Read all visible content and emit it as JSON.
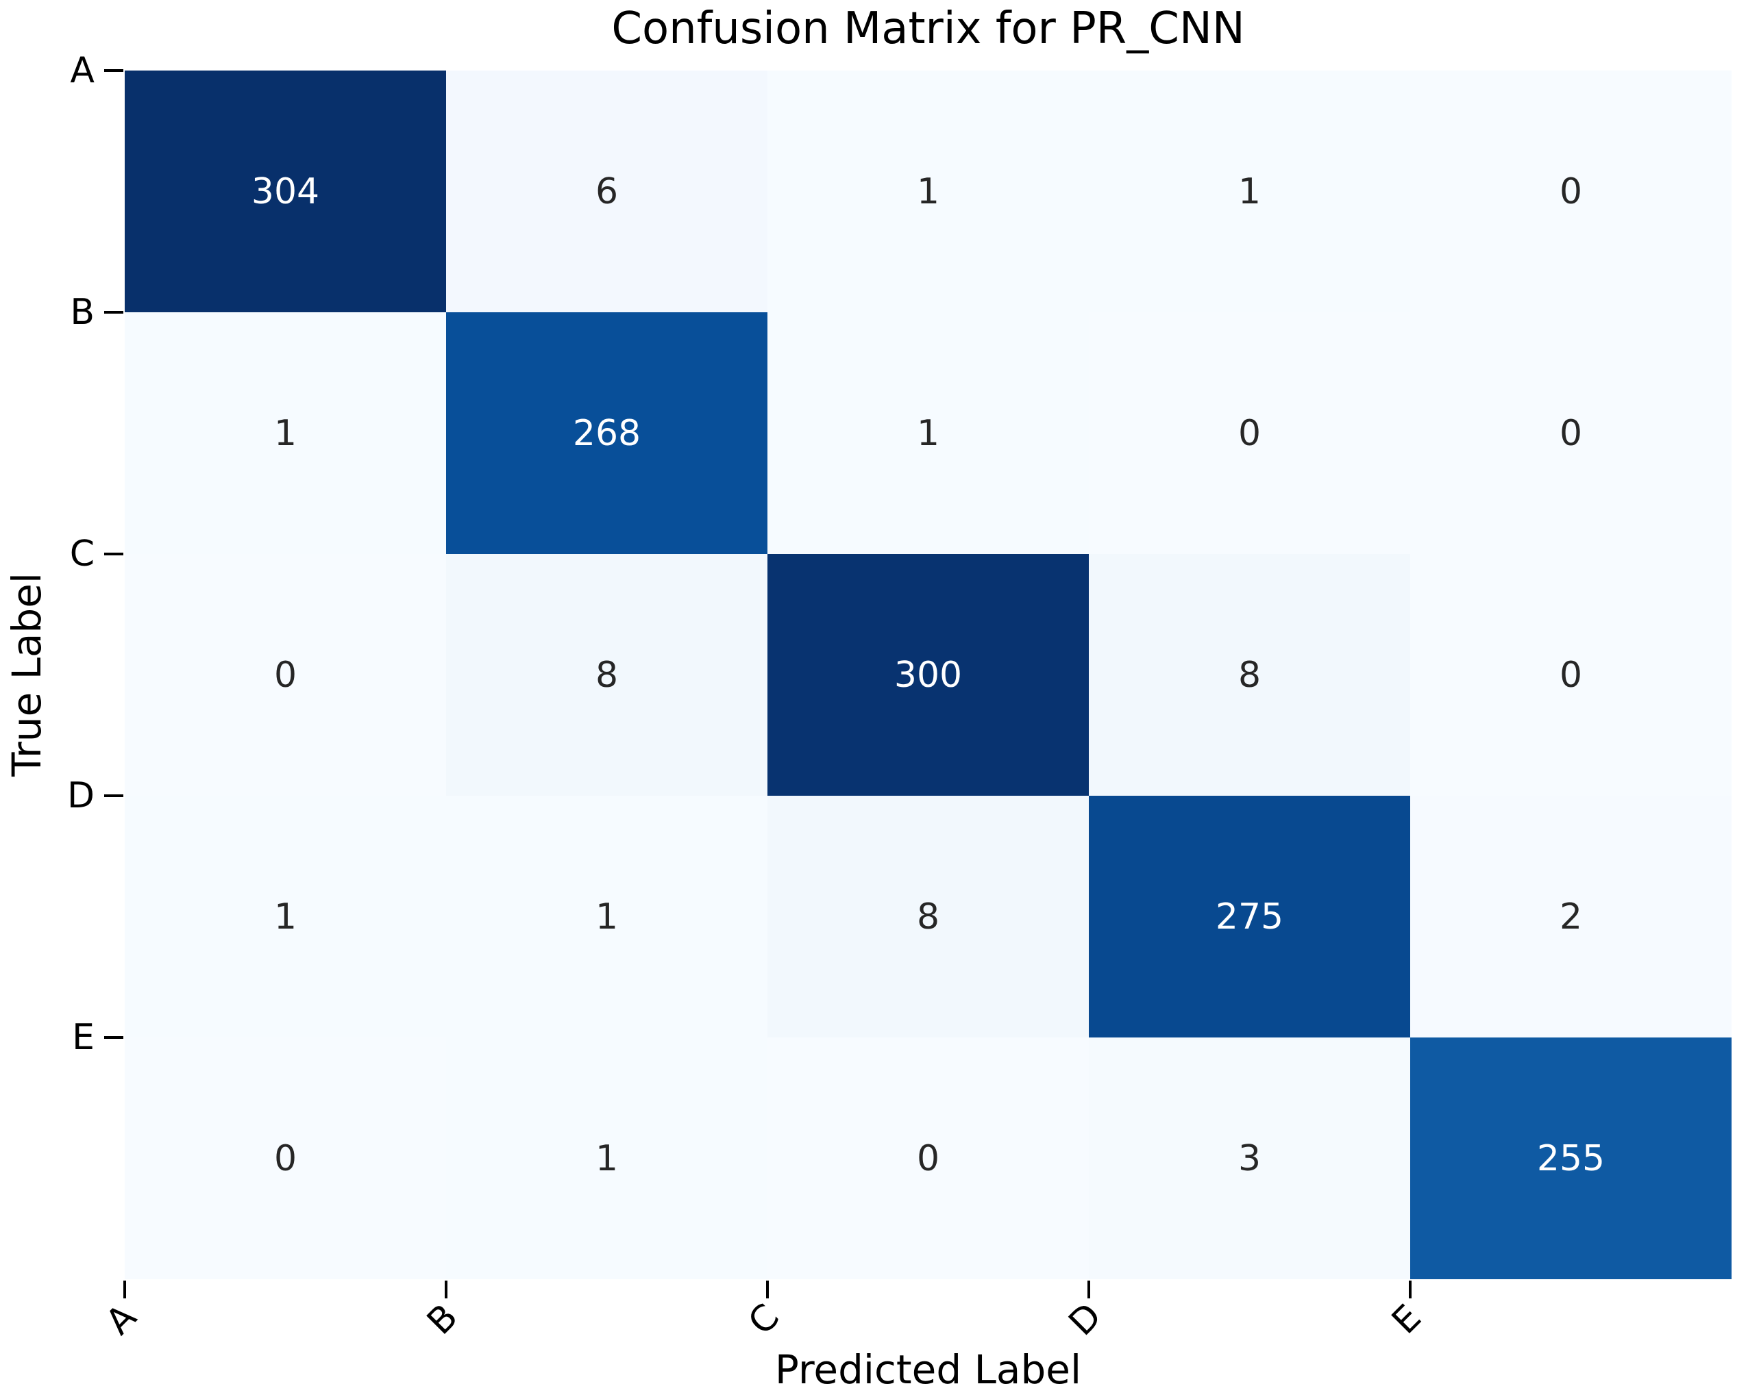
{
  "chart_data": {
    "type": "heatmap",
    "title": "Confusion Matrix for PR_CNN",
    "xlabel": "Predicted Label",
    "ylabel": "True Label",
    "x_categories": [
      "A",
      "B",
      "C",
      "D",
      "E"
    ],
    "y_categories": [
      "A",
      "B",
      "C",
      "D",
      "E"
    ],
    "matrix": [
      [
        304,
        6,
        1,
        1,
        0
      ],
      [
        1,
        268,
        1,
        0,
        0
      ],
      [
        0,
        8,
        300,
        8,
        0
      ],
      [
        1,
        1,
        8,
        275,
        2
      ],
      [
        0,
        1,
        0,
        3,
        255
      ]
    ],
    "vmin": 0,
    "vmax": 304,
    "colormap": "Blues",
    "colormap_stops": [
      "#f7fbff",
      "#deebf7",
      "#c6dbef",
      "#9ecae1",
      "#6baed6",
      "#4292c6",
      "#2171b5",
      "#08519c",
      "#08306b"
    ],
    "annotation_colors": {
      "light_text": "#ffffff",
      "dark_text": "#262626"
    },
    "tick_color": "#000000",
    "x_tick_rotation_deg": -45,
    "grid": false,
    "legend": false,
    "colorbar": false
  }
}
